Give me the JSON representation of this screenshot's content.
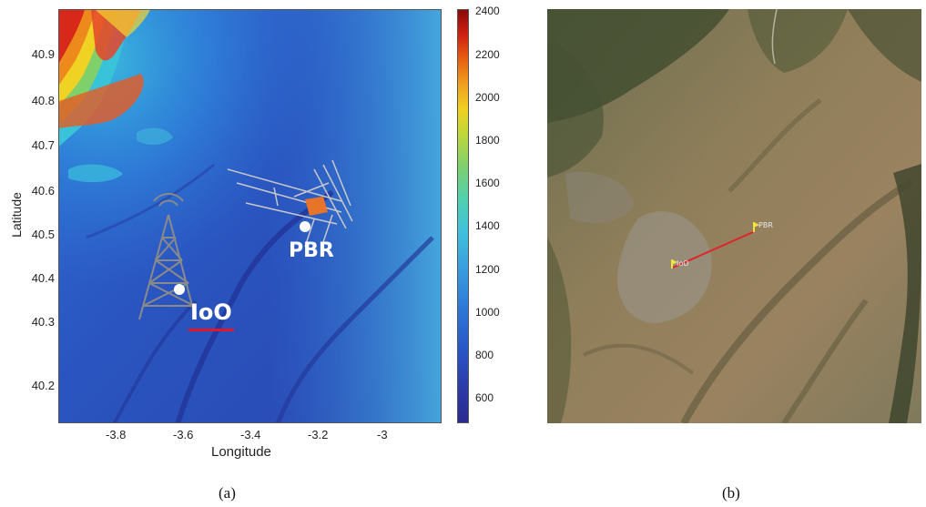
{
  "panel_a": {
    "ylabel": "Latitude",
    "xlabel": "Longitude",
    "y_ticks": [
      "40.9",
      "40.8",
      "40.7",
      "40.6",
      "40.5",
      "40.4",
      "40.3",
      "40.2"
    ],
    "x_ticks": [
      "-3.8",
      "-3.6",
      "-3.4",
      "-3.2",
      "-3"
    ],
    "colorbar_ticks": [
      "2400",
      "2200",
      "2000",
      "1800",
      "1600",
      "1400",
      "1200",
      "1000",
      "800",
      "600"
    ],
    "labels": {
      "pbr": "PBR",
      "ioo": "IoO"
    },
    "colors": {
      "label_text": "#ffffff",
      "ioo_underline": "#e0182a"
    },
    "icons": {
      "transmitter": "transmitter-tower-icon",
      "receiver": "antenna-array-icon"
    },
    "caption": "(a)"
  },
  "panel_b": {
    "markers": [
      {
        "id": "ioo",
        "label": "IoO"
      },
      {
        "id": "pbr",
        "label": "PBR"
      }
    ],
    "link_color": "#e0242a",
    "caption": "(b)"
  }
}
